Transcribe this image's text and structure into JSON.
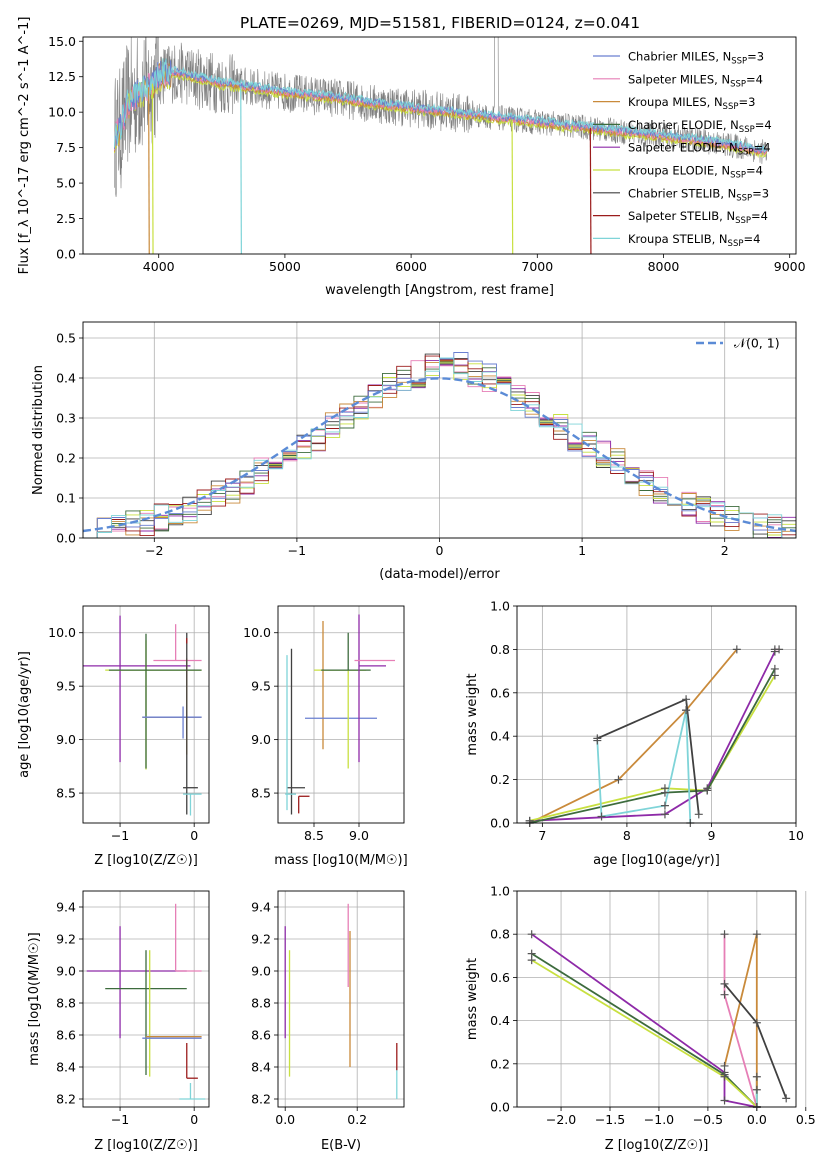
{
  "figure": {
    "title": "PLATE=0269, MJD=51581, FIBERID=0124, z=0.041"
  },
  "colors": {
    "chabrier_miles": "#6a7fd0",
    "salpeter_miles": "#e67fb6",
    "kroupa_miles": "#c98a3b",
    "chabrier_elodie": "#3d6b3d",
    "salpeter_elodie": "#8e2aa8",
    "kroupa_elodie": "#c8e040",
    "chabrier_stelib": "#404040",
    "salpeter_stelib": "#9b1c1c",
    "kroupa_stelib": "#7fd4d8",
    "gauss": "#5b8bd6",
    "grid": "#b0b0b0",
    "data_spectrum": "#808080"
  },
  "chart_data": [
    {
      "id": "spectrum",
      "type": "line",
      "title": "PLATE=0269, MJD=51581, FIBERID=0124, z=0.041",
      "xlabel": "wavelength [Angstrom, rest frame]",
      "ylabel": "Flux [f_λ 10^-17 erg cm^-2 s^-1 A^-1]",
      "xlim": [
        3400,
        9050
      ],
      "ylim": [
        0,
        15.3
      ],
      "xticks": [
        4000,
        5000,
        6000,
        7000,
        8000,
        9000
      ],
      "yticks": [
        0.0,
        2.5,
        5.0,
        7.5,
        10.0,
        12.5,
        15.0
      ],
      "ytick_labels": [
        "0.0",
        "2.5",
        "5.0",
        "7.5",
        "10.0",
        "12.5",
        "15.0"
      ],
      "legend_loc": "top-right",
      "data_x": [
        3650,
        3700,
        3750,
        3800,
        3850,
        3900,
        3950,
        4000,
        4100,
        4200,
        4300,
        4400,
        4500,
        4700,
        4900,
        5100,
        5300,
        5500,
        5700,
        5900,
        6100,
        6300,
        6500,
        6700,
        6900,
        7100,
        7300,
        7500,
        7700,
        7900,
        8100,
        8300,
        8500,
        8700,
        8800
      ],
      "data_y": [
        8.3,
        8.8,
        10.5,
        11.0,
        11.4,
        11.6,
        12.0,
        12.6,
        12.8,
        12.7,
        12.4,
        12.2,
        12.0,
        11.8,
        11.5,
        11.3,
        11.1,
        10.9,
        10.6,
        10.4,
        10.2,
        10.0,
        9.8,
        9.6,
        9.4,
        9.2,
        9.0,
        8.8,
        8.6,
        8.4,
        8.2,
        8.0,
        7.7,
        7.4,
        7.2
      ],
      "series": [
        {
          "name": "Chabrier MILES, N_SSP=3",
          "label_main": "Chabrier MILES, N",
          "label_sub": "SSP",
          "label_tail": "=3",
          "color_key": "chabrier_miles"
        },
        {
          "name": "Salpeter MILES, N_SSP=4",
          "label_main": "Salpeter MILES, N",
          "label_sub": "SSP",
          "label_tail": "=4",
          "color_key": "salpeter_miles"
        },
        {
          "name": "Kroupa MILES, N_SSP=3",
          "label_main": "Kroupa MILES, N",
          "label_sub": "SSP",
          "label_tail": "=3",
          "color_key": "kroupa_miles"
        },
        {
          "name": "Chabrier ELODIE, N_SSP=4",
          "label_main": "Chabrier ELODIE, N",
          "label_sub": "SSP",
          "label_tail": "=4",
          "color_key": "chabrier_elodie"
        },
        {
          "name": "Salpeter ELODIE, N_SSP=4",
          "label_main": "Salpeter ELODIE, N",
          "label_sub": "SSP",
          "label_tail": "=4",
          "color_key": "salpeter_elodie"
        },
        {
          "name": "Kroupa ELODIE, N_SSP=4",
          "label_main": "Kroupa ELODIE, N",
          "label_sub": "SSP",
          "label_tail": "=4",
          "color_key": "kroupa_elodie"
        },
        {
          "name": "Chabrier STELIB, N_SSP=3",
          "label_main": "Chabrier STELIB, N",
          "label_sub": "SSP",
          "label_tail": "=3",
          "color_key": "chabrier_stelib"
        },
        {
          "name": "Salpeter STELIB, N_SSP=4",
          "label_main": "Salpeter STELIB, N",
          "label_sub": "SSP",
          "label_tail": "=4",
          "color_key": "salpeter_stelib"
        },
        {
          "name": "Kroupa STELIB, N_SSP=4",
          "label_main": "Kroupa STELIB, N",
          "label_sub": "SSP",
          "label_tail": "=4",
          "color_key": "kroupa_stelib"
        }
      ]
    },
    {
      "id": "residuals",
      "type": "histogram",
      "xlabel": "(data-model)/error",
      "ylabel": "Normed distribution",
      "xlim": [
        -2.5,
        2.5
      ],
      "ylim": [
        0,
        0.54
      ],
      "xticks": [
        -2,
        -1,
        0,
        1,
        2
      ],
      "xtick_labels": [
        "−2",
        "−1",
        "0",
        "1",
        "2"
      ],
      "yticks": [
        0.0,
        0.1,
        0.2,
        0.3,
        0.4,
        0.5
      ],
      "ytick_labels": [
        "0.0",
        "0.1",
        "0.2",
        "0.3",
        "0.4",
        "0.5"
      ],
      "legend_loc": "top-right",
      "gauss_label": "𝒩(0, 1)",
      "bin_edges": [
        -2.5,
        -2.4,
        -2.3,
        -2.2,
        -2.1,
        -2.0,
        -1.9,
        -1.8,
        -1.7,
        -1.6,
        -1.5,
        -1.4,
        -1.3,
        -1.2,
        -1.1,
        -1.0,
        -0.9,
        -0.8,
        -0.7,
        -0.6,
        -0.5,
        -0.4,
        -0.3,
        -0.2,
        -0.1,
        0.0,
        0.1,
        0.2,
        0.3,
        0.4,
        0.5,
        0.6,
        0.7,
        0.8,
        0.9,
        1.0,
        1.1,
        1.2,
        1.3,
        1.4,
        1.5,
        1.6,
        1.7,
        1.8,
        1.9,
        2.0,
        2.1,
        2.2,
        2.3,
        2.4,
        2.5
      ],
      "hist_base": [
        0.02,
        0.03,
        0.03,
        0.04,
        0.04,
        0.05,
        0.06,
        0.07,
        0.09,
        0.11,
        0.12,
        0.14,
        0.17,
        0.19,
        0.2,
        0.23,
        0.25,
        0.28,
        0.3,
        0.32,
        0.35,
        0.38,
        0.4,
        0.41,
        0.43,
        0.45,
        0.43,
        0.41,
        0.4,
        0.38,
        0.35,
        0.33,
        0.3,
        0.28,
        0.25,
        0.23,
        0.21,
        0.19,
        0.17,
        0.14,
        0.12,
        0.1,
        0.08,
        0.07,
        0.06,
        0.05,
        0.04,
        0.03,
        0.03,
        0.02
      ]
    },
    {
      "id": "age_vs_Z",
      "type": "scatter",
      "xlabel": "Z [log10(Z/Z☉)]",
      "ylabel": "age [log10(age/yr)]",
      "xlim": [
        -1.5,
        0.2
      ],
      "ylim": [
        8.22,
        10.25
      ],
      "xticks": [
        -1,
        0
      ],
      "xtick_labels": [
        "−1",
        "0"
      ],
      "yticks": [
        8.5,
        9.0,
        9.5,
        10.0
      ],
      "ytick_labels": [
        "8.5",
        "9.0",
        "9.5",
        "10.0"
      ]
    },
    {
      "id": "age_vs_mass",
      "type": "scatter",
      "xlabel": "mass [log10(M/M☉)]",
      "ylabel": "",
      "xlim": [
        8.1,
        9.5
      ],
      "ylim": [
        8.22,
        10.25
      ],
      "xticks": [
        8.5,
        9.0
      ],
      "xtick_labels": [
        "8.5",
        "9.0"
      ],
      "yticks": [
        8.5,
        9.0,
        9.5,
        10.0
      ],
      "ytick_labels": [
        "8.5",
        "9.0",
        "9.5",
        "10.0"
      ]
    },
    {
      "id": "massweight_vs_age",
      "type": "line",
      "xlabel": "age [log10(age/yr)]",
      "ylabel": "mass weight",
      "xlim": [
        6.7,
        10.0
      ],
      "ylim": [
        0,
        1.0
      ],
      "xticks": [
        7,
        8,
        9,
        10
      ],
      "xtick_labels": [
        "7",
        "8",
        "9",
        "10"
      ],
      "yticks": [
        0.0,
        0.2,
        0.4,
        0.6,
        0.8,
        1.0
      ],
      "ytick_labels": [
        "0.0",
        "0.2",
        "0.4",
        "0.6",
        "0.8",
        "1.0"
      ],
      "series": [
        {
          "color_key": "kroupa_miles",
          "x": [
            6.85,
            7.9,
            8.7,
            9.3
          ],
          "y": [
            0.0,
            0.2,
            0.52,
            0.8
          ]
        },
        {
          "color_key": "salpeter_elodie",
          "x": [
            6.85,
            8.45,
            8.95,
            9.75
          ],
          "y": [
            0.01,
            0.04,
            0.16,
            0.79
          ]
        },
        {
          "color_key": "kroupa_elodie",
          "x": [
            6.85,
            8.45,
            8.95,
            9.75
          ],
          "y": [
            0.01,
            0.16,
            0.15,
            0.68
          ]
        },
        {
          "color_key": "chabrier_elodie",
          "x": [
            6.85,
            8.45,
            8.95,
            9.75
          ],
          "y": [
            0.0,
            0.14,
            0.15,
            0.71
          ]
        },
        {
          "color_key": "chabrier_stelib",
          "x": [
            7.65,
            8.7,
            8.85
          ],
          "y": [
            0.39,
            0.57,
            0.04
          ]
        },
        {
          "color_key": "kroupa_stelib",
          "x": [
            7.65,
            7.7,
            8.45,
            8.7,
            8.75
          ],
          "y": [
            0.38,
            0.03,
            0.08,
            0.52,
            0.0
          ]
        },
        {
          "color_key": "salpeter_miles",
          "x": [
            9.75,
            9.8
          ],
          "y": [
            0.8,
            0.8
          ]
        }
      ]
    },
    {
      "id": "mass_vs_Z",
      "type": "scatter",
      "xlabel": "Z [log10(Z/Z☉)]",
      "ylabel": "mass [log10(M/M☉)]",
      "xlim": [
        -1.5,
        0.2
      ],
      "ylim": [
        8.15,
        9.5
      ],
      "xticks": [
        -1,
        0
      ],
      "xtick_labels": [
        "−1",
        "0"
      ],
      "yticks": [
        8.2,
        8.4,
        8.6,
        8.8,
        9.0,
        9.2,
        9.4
      ],
      "ytick_labels": [
        "8.2",
        "8.4",
        "8.6",
        "8.8",
        "9.0",
        "9.2",
        "9.4"
      ]
    },
    {
      "id": "mass_vs_ebv",
      "type": "scatter",
      "xlabel": "E(B-V)",
      "ylabel": "",
      "xlim": [
        -0.02,
        0.33
      ],
      "ylim": [
        8.15,
        9.5
      ],
      "xticks": [
        0.0,
        0.2
      ],
      "xtick_labels": [
        "0.0",
        "0.2"
      ],
      "yticks": [
        8.2,
        8.4,
        8.6,
        8.8,
        9.0,
        9.2,
        9.4
      ],
      "ytick_labels": [
        "8.2",
        "8.4",
        "8.6",
        "8.8",
        "9.0",
        "9.2",
        "9.4"
      ]
    },
    {
      "id": "massweight_vs_Z",
      "type": "line",
      "xlabel": "Z [log10(Z/Z☉)]",
      "ylabel": "mass weight",
      "xlim": [
        -2.45,
        0.4
      ],
      "ylim": [
        0,
        1.0
      ],
      "xticks": [
        -2.0,
        -1.5,
        -1.0,
        -0.5,
        0.0,
        0.5
      ],
      "xtick_labels": [
        "−2.0",
        "−1.5",
        "−1.0",
        "−0.5",
        "0.0",
        "0.5"
      ],
      "yticks": [
        0.0,
        0.2,
        0.4,
        0.6,
        0.8,
        1.0
      ],
      "ytick_labels": [
        "0.0",
        "0.2",
        "0.4",
        "0.6",
        "0.8",
        "1.0"
      ],
      "series": [
        {
          "color_key": "salpeter_elodie",
          "x": [
            -2.3,
            -0.33,
            -0.33,
            0.0
          ],
          "y": [
            0.8,
            0.16,
            0.03,
            0.0
          ]
        },
        {
          "color_key": "chabrier_elodie",
          "x": [
            -2.3,
            -0.33,
            0.0,
            0.0
          ],
          "y": [
            0.71,
            0.15,
            0.0,
            0.14
          ]
        },
        {
          "color_key": "kroupa_elodie",
          "x": [
            -2.3,
            -0.33,
            0.0
          ],
          "y": [
            0.68,
            0.14,
            0.0
          ]
        },
        {
          "color_key": "salpeter_miles",
          "x": [
            -0.33,
            -0.33,
            0.0
          ],
          "y": [
            0.8,
            0.52,
            0.0
          ]
        },
        {
          "color_key": "kroupa_miles",
          "x": [
            -0.33,
            0.0,
            0.0
          ],
          "y": [
            0.19,
            0.8,
            0.0
          ]
        },
        {
          "color_key": "chabrier_stelib",
          "x": [
            -0.33,
            0.0,
            0.3
          ],
          "y": [
            0.57,
            0.39,
            0.04
          ]
        },
        {
          "color_key": "kroupa_stelib",
          "x": [
            0.0,
            0.0
          ],
          "y": [
            0.08,
            0.0
          ]
        }
      ]
    }
  ]
}
